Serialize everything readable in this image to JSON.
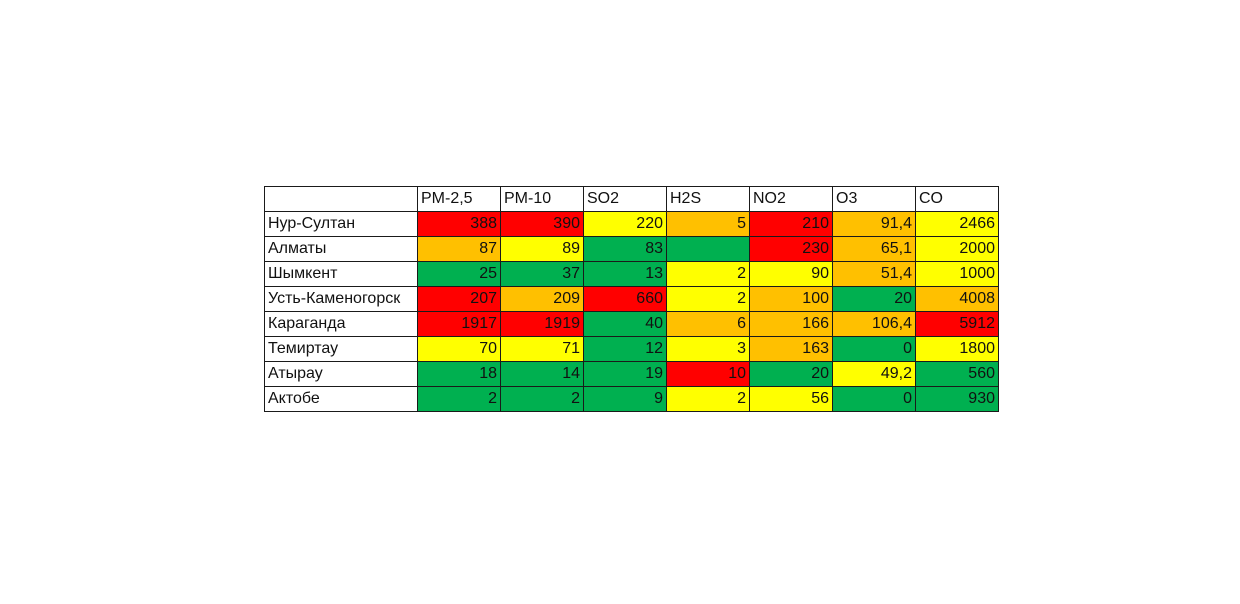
{
  "colors": {
    "red": "#ff0000",
    "orange": "#ffc000",
    "yellow": "#ffff00",
    "green": "#00b050"
  },
  "table": {
    "headers": [
      "PM-2,5",
      "PM-10",
      "SO2",
      "H2S",
      "NO2",
      "O3",
      "CO"
    ],
    "rows": [
      {
        "city": "Нур-Султан",
        "values": [
          "388",
          "390",
          "220",
          "5",
          "210",
          "91,4",
          "2466"
        ],
        "colors": [
          "red",
          "red",
          "yellow",
          "orange",
          "red",
          "orange",
          "yellow"
        ]
      },
      {
        "city": "Алматы",
        "values": [
          "87",
          "89",
          "83",
          "",
          "230",
          "65,1",
          "2000"
        ],
        "colors": [
          "orange",
          "yellow",
          "green",
          "green",
          "red",
          "orange",
          "yellow"
        ]
      },
      {
        "city": "Шымкент",
        "values": [
          "25",
          "37",
          "13",
          "2",
          "90",
          "51,4",
          "1000"
        ],
        "colors": [
          "green",
          "green",
          "green",
          "yellow",
          "yellow",
          "orange",
          "yellow"
        ]
      },
      {
        "city": "Усть-Каменогорск",
        "values": [
          "207",
          "209",
          "660",
          "2",
          "100",
          "20",
          "4008"
        ],
        "colors": [
          "red",
          "orange",
          "red",
          "yellow",
          "orange",
          "green",
          "orange"
        ]
      },
      {
        "city": "Караганда",
        "values": [
          "1917",
          "1919",
          "40",
          "6",
          "166",
          "106,4",
          "5912"
        ],
        "colors": [
          "red",
          "red",
          "green",
          "orange",
          "orange",
          "orange",
          "red"
        ]
      },
      {
        "city": "Темиртау",
        "values": [
          "70",
          "71",
          "12",
          "3",
          "163",
          "0",
          "1800"
        ],
        "colors": [
          "yellow",
          "yellow",
          "green",
          "yellow",
          "orange",
          "green",
          "yellow"
        ]
      },
      {
        "city": "Атырау",
        "values": [
          "18",
          "14",
          "19",
          "10",
          "20",
          "49,2",
          "560"
        ],
        "colors": [
          "green",
          "green",
          "green",
          "red",
          "green",
          "yellow",
          "green"
        ]
      },
      {
        "city": "Актобе",
        "values": [
          "2",
          "2",
          "9",
          "2",
          "56",
          "0",
          "930"
        ],
        "colors": [
          "green",
          "green",
          "green",
          "yellow",
          "yellow",
          "green",
          "green"
        ]
      }
    ]
  }
}
